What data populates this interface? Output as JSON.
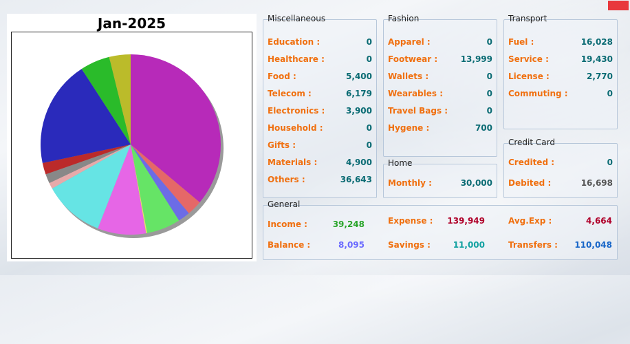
{
  "chart_data": {
    "type": "pie",
    "title": "Jan-2025",
    "slices": [
      {
        "value": 36643,
        "color": "#b72ab9"
      },
      {
        "value": 2770,
        "color": "#e56868"
      },
      {
        "value": 2200,
        "color": "#6c6ce6"
      },
      {
        "value": 6179,
        "color": "#66e466"
      },
      {
        "value": 200,
        "color": "#e4e466"
      },
      {
        "value": 8800,
        "color": "#e666e6"
      },
      {
        "value": 11100,
        "color": "#66e4e4"
      },
      {
        "value": 1100,
        "color": "#e6aaaa"
      },
      {
        "value": 1700,
        "color": "#888888"
      },
      {
        "value": 2100,
        "color": "#bb2a2a"
      },
      {
        "value": 19430,
        "color": "#2a2abb"
      },
      {
        "value": 5400,
        "color": "#2abb2a"
      },
      {
        "value": 3900,
        "color": "#bbbb2a"
      }
    ]
  },
  "misc": {
    "title": "Miscellaneous",
    "items": [
      {
        "label": "Education :",
        "value": "0"
      },
      {
        "label": "Healthcare :",
        "value": "0"
      },
      {
        "label": "Food :",
        "value": "5,400"
      },
      {
        "label": "Telecom :",
        "value": "6,179"
      },
      {
        "label": "Electronics :",
        "value": "3,900"
      },
      {
        "label": "Household :",
        "value": "0"
      },
      {
        "label": "Gifts :",
        "value": "0"
      },
      {
        "label": "Materials :",
        "value": "4,900"
      },
      {
        "label": "Others :",
        "value": "36,643"
      }
    ]
  },
  "fashion": {
    "title": "Fashion",
    "items": [
      {
        "label": "Apparel :",
        "value": "0"
      },
      {
        "label": "Footwear :",
        "value": "13,999"
      },
      {
        "label": "Wallets :",
        "value": "0"
      },
      {
        "label": "Wearables :",
        "value": "0"
      },
      {
        "label": "Travel Bags :",
        "value": "0"
      },
      {
        "label": "Hygene :",
        "value": "700"
      }
    ]
  },
  "transport": {
    "title": "Transport",
    "items": [
      {
        "label": "Fuel :",
        "value": "16,028"
      },
      {
        "label": "Service :",
        "value": "19,430"
      },
      {
        "label": "License :",
        "value": "2,770"
      },
      {
        "label": "Commuting :",
        "value": "0"
      }
    ]
  },
  "home": {
    "title": "Home",
    "monthly_label": "Monthly :",
    "monthly_value": "30,000"
  },
  "credit": {
    "title": "Credit Card",
    "credited_label": "Credited :",
    "credited_value": "0",
    "debited_label": "Debited :",
    "debited_value": "16,698"
  },
  "general": {
    "title": "General",
    "income_label": "Income :",
    "income_value": "39,248",
    "expense_label": "Expense :",
    "expense_value": "139,949",
    "avg_label": "Avg.Exp :",
    "avg_value": "4,664",
    "balance_label": "Balance :",
    "balance_value": "8,095",
    "savings_label": "Savings :",
    "savings_value": "11,000",
    "transfers_label": "Transfers :",
    "transfers_value": "110,048"
  },
  "colors": {
    "label": "#f07010",
    "value": "#0a6b73",
    "close_button": "#e8383d"
  }
}
